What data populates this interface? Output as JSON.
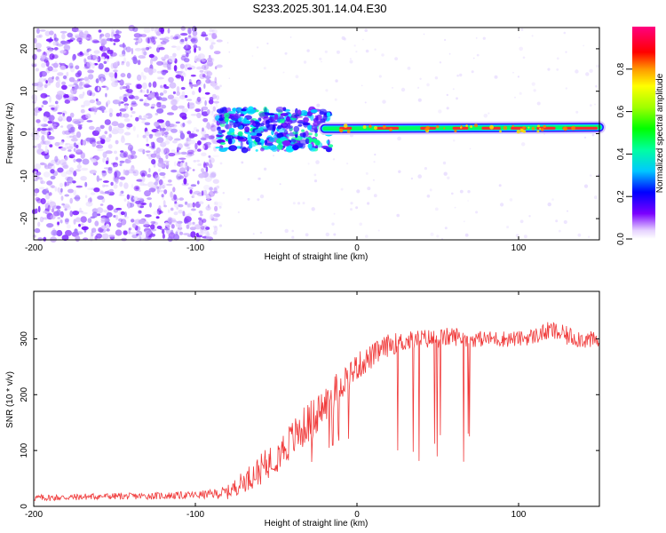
{
  "title": "S233.2025.301.14.04.E30",
  "chart_data": [
    {
      "type": "heatmap",
      "name": "spectrogram",
      "xlabel": "Height of straight line (km)",
      "ylabel": "Frequency (Hz)",
      "xlim": [
        -200,
        150
      ],
      "ylim": [
        -25,
        25
      ],
      "xticks": [
        -200,
        -100,
        0,
        100
      ],
      "yticks": [
        -20,
        -10,
        0,
        10,
        20
      ],
      "colorbar": {
        "label": "Normalized spectral amplitude",
        "range": [
          0,
          1
        ],
        "ticks": [
          "0.0",
          "0.2",
          "0.4",
          "0.6",
          "0.8"
        ]
      },
      "description_regions": [
        {
          "x_range": [
            -200,
            -90
          ],
          "freq_range": [
            -25,
            25
          ],
          "amplitude": 0.15,
          "pattern": "scattered noise"
        },
        {
          "x_range": [
            -85,
            -20
          ],
          "freq_range": [
            -4,
            6
          ],
          "amplitude": 0.3,
          "pattern": "spread signal"
        },
        {
          "x_range": [
            -20,
            150
          ],
          "freq_range": [
            0,
            2
          ],
          "amplitude": 0.9,
          "pattern": "narrow band near 1 Hz"
        }
      ]
    },
    {
      "type": "line",
      "name": "snr",
      "xlabel": "Height of straight line (km)",
      "ylabel": "SNR (10 * v/v)",
      "xlim": [
        -200,
        150
      ],
      "ylim": [
        0,
        385
      ],
      "xticks": [
        -200,
        -100,
        0,
        100
      ],
      "yticks": [
        0,
        100,
        200,
        300
      ],
      "series": [
        {
          "name": "SNR",
          "color": "#f03a3a",
          "x": [
            -200,
            -180,
            -160,
            -140,
            -120,
            -100,
            -90,
            -80,
            -70,
            -60,
            -50,
            -40,
            -30,
            -20,
            -10,
            0,
            10,
            20,
            30,
            40,
            50,
            60,
            70,
            80,
            90,
            100,
            110,
            120,
            130,
            140,
            150
          ],
          "base": [
            15,
            16,
            18,
            18,
            19,
            20,
            22,
            25,
            45,
            65,
            90,
            120,
            150,
            180,
            220,
            250,
            270,
            290,
            295,
            300,
            300,
            305,
            300,
            300,
            300,
            300,
            305,
            315,
            305,
            300,
            295
          ],
          "spread": [
            12,
            12,
            12,
            12,
            13,
            14,
            16,
            25,
            40,
            55,
            60,
            70,
            75,
            70,
            60,
            50,
            45,
            40,
            35,
            35,
            35,
            35,
            30,
            28,
            30,
            28,
            30,
            35,
            35,
            35,
            30
          ]
        }
      ]
    }
  ],
  "colors": {
    "background": "#ffffff",
    "frame": "#000000",
    "line": "#f03a3a"
  }
}
